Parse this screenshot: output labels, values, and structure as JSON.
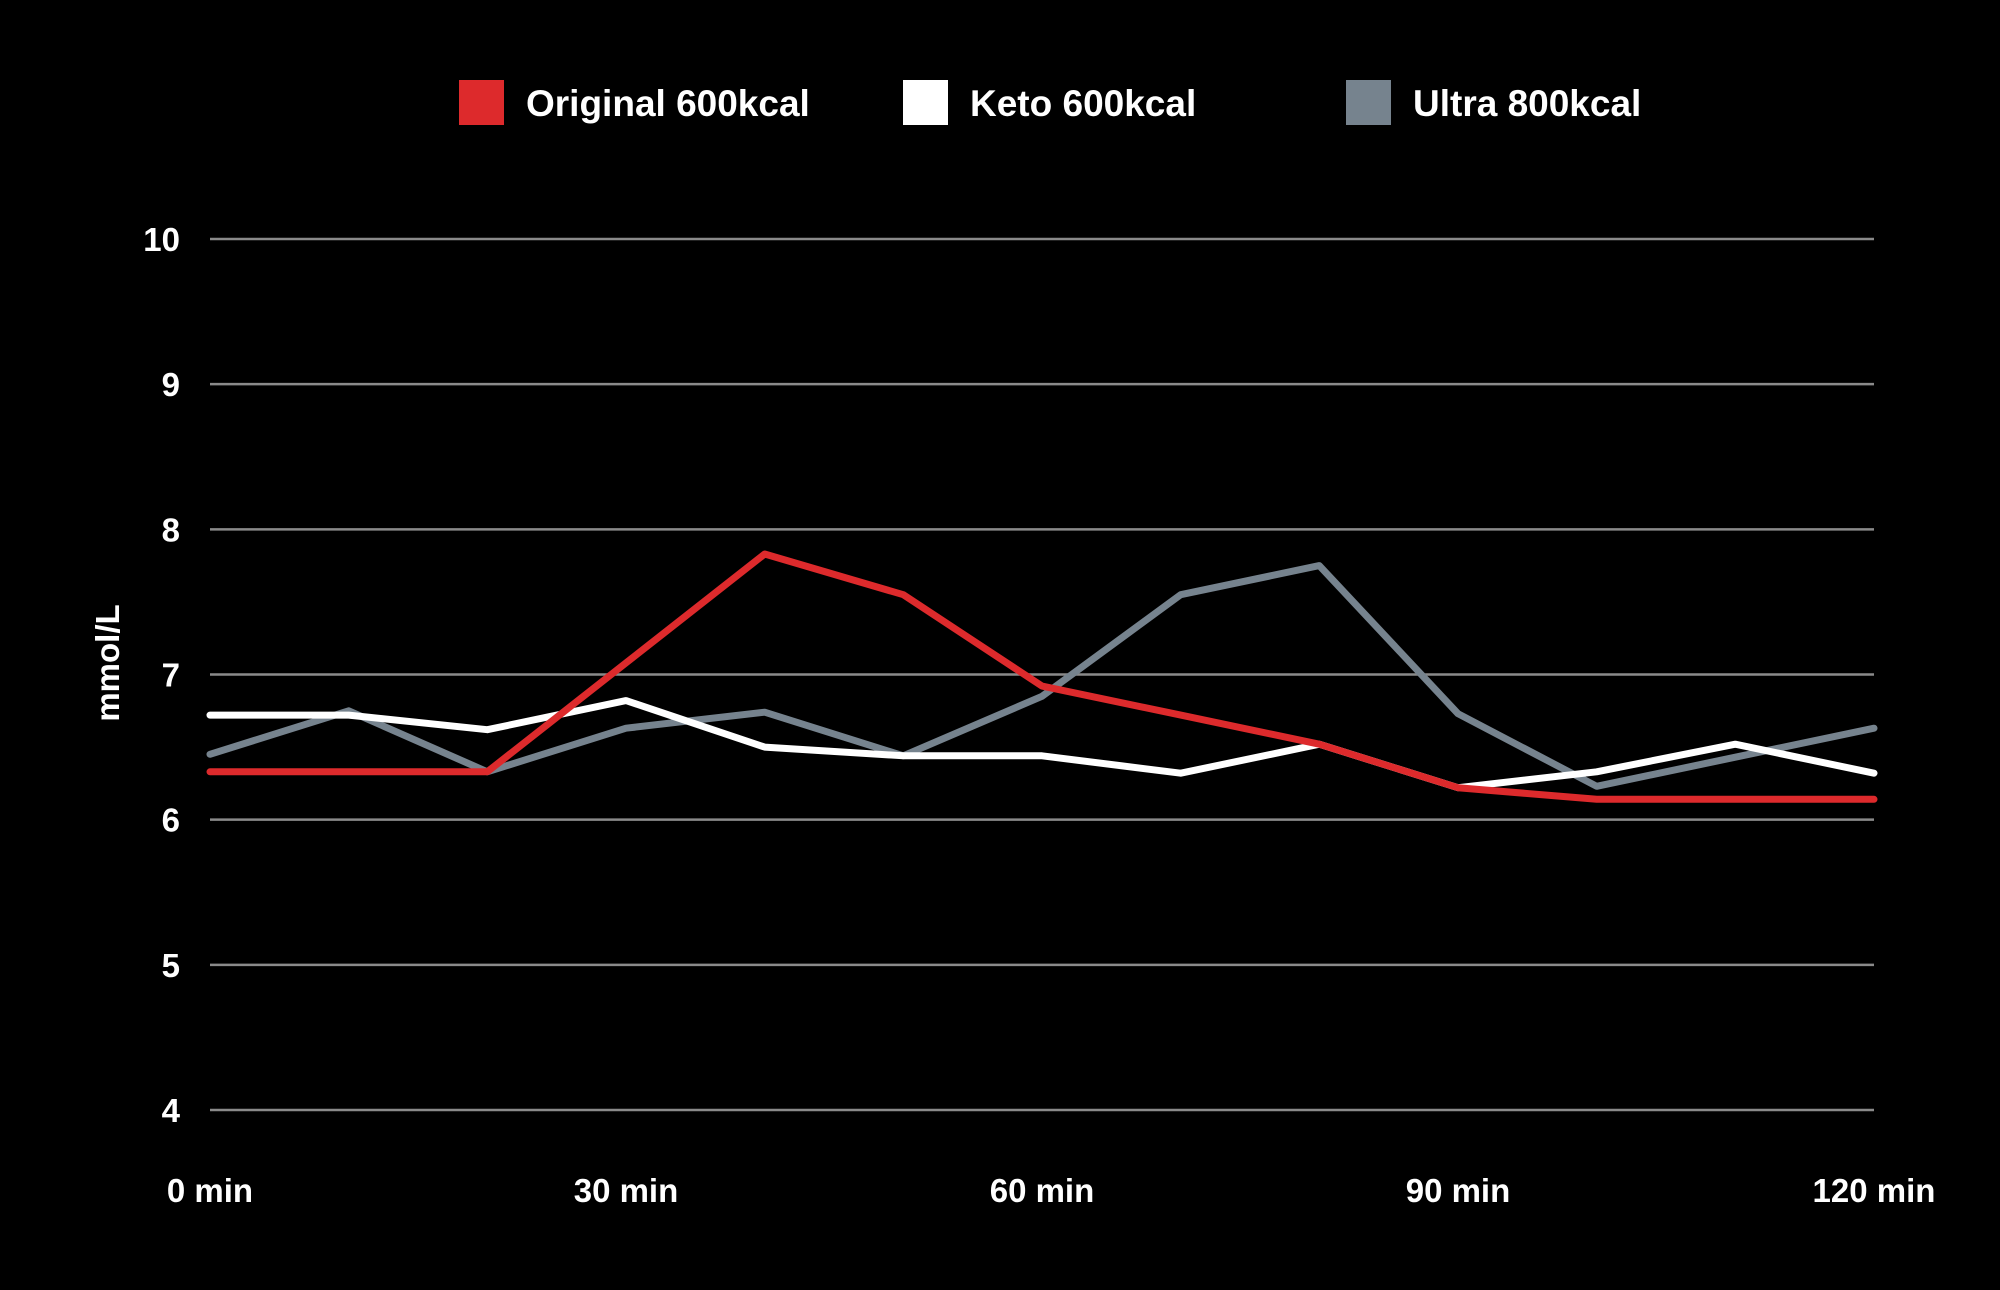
{
  "chart_data": {
    "type": "line",
    "title": "",
    "xlabel": "",
    "ylabel": "mmol/L",
    "x_unit": "min",
    "x": [
      0,
      10,
      20,
      30,
      40,
      50,
      60,
      70,
      80,
      90,
      100,
      110,
      120
    ],
    "xticks": [
      0,
      30,
      60,
      90,
      120
    ],
    "xtick_labels": [
      "0 min",
      "30 min",
      "60 min",
      "90 min",
      "120 min"
    ],
    "xlim": [
      0,
      120
    ],
    "ylim": [
      4,
      10
    ],
    "yticks": [
      4,
      5,
      6,
      7,
      8,
      9,
      10
    ],
    "ytick_labels": [
      "4",
      "5",
      "6",
      "7",
      "8",
      "9",
      "10"
    ],
    "grid": true,
    "legend_position": "top-center",
    "background": "#000000",
    "series": [
      {
        "name": "Ultra 800kcal",
        "color": "#76838e",
        "values": [
          6.45,
          6.75,
          6.33,
          6.63,
          6.74,
          6.44,
          6.85,
          7.55,
          7.75,
          6.73,
          6.23,
          6.43,
          6.63
        ]
      },
      {
        "name": "Keto 600kcal",
        "color": "#ffffff",
        "values": [
          6.72,
          6.72,
          6.62,
          6.82,
          6.5,
          6.44,
          6.44,
          6.32,
          6.52,
          6.22,
          6.33,
          6.52,
          6.32
        ]
      },
      {
        "name": "Original 600kcal",
        "color": "#dd2a2c",
        "values": [
          6.33,
          6.33,
          6.33,
          7.08,
          7.83,
          7.55,
          6.92,
          6.72,
          6.52,
          6.22,
          6.14,
          6.14,
          6.14
        ]
      }
    ],
    "legend": [
      {
        "name": "Original 600kcal",
        "color": "#dd2a2c"
      },
      {
        "name": "Keto 600kcal",
        "color": "#ffffff"
      },
      {
        "name": "Ultra 800kcal",
        "color": "#76838e"
      }
    ]
  }
}
